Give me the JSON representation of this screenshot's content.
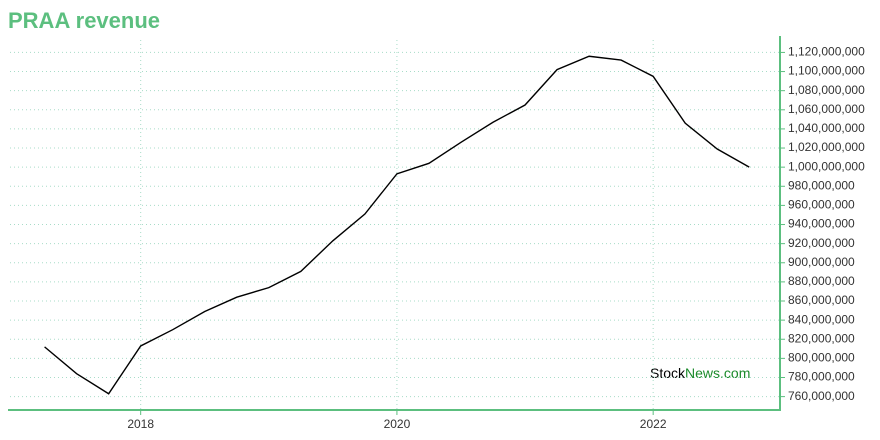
{
  "chart_data": {
    "type": "line",
    "title": "PRAA revenue",
    "x": [
      2017.25,
      2017.5,
      2017.75,
      2018,
      2018.25,
      2018.5,
      2018.75,
      2019,
      2019.25,
      2019.5,
      2019.75,
      2020,
      2020.25,
      2020.5,
      2020.75,
      2021,
      2021.25,
      2021.5,
      2021.75,
      2022,
      2022.25,
      2022.5,
      2022.75
    ],
    "values": [
      812000000,
      784000000,
      763000000,
      813000000,
      830000000,
      849000000,
      864000000,
      874000000,
      891000000,
      923000000,
      951000000,
      993000000,
      1004000000,
      1026000000,
      1047000000,
      1065000000,
      1102000000,
      1116000000,
      1112000000,
      1095000000,
      1046000000,
      1019000000,
      1000000000
    ],
    "color": "#000000",
    "xlim": [
      2016.98,
      2022.99
    ],
    "xticks": [
      2018,
      2020,
      2022
    ],
    "ylim": [
      746000000,
      1133000000
    ],
    "yticks": [
      {
        "value": 760000000,
        "label": "760,000,000"
      },
      {
        "value": 780000000,
        "label": "780,000,000"
      },
      {
        "value": 800000000,
        "label": "800,000,000"
      },
      {
        "value": 820000000,
        "label": "820,000,000"
      },
      {
        "value": 840000000,
        "label": "840,000,000"
      },
      {
        "value": 860000000,
        "label": "860,000,000"
      },
      {
        "value": 880000000,
        "label": "880,000,000"
      },
      {
        "value": 900000000,
        "label": "900,000,000"
      },
      {
        "value": 920000000,
        "label": "920,000,000"
      },
      {
        "value": 940000000,
        "label": "940,000,000"
      },
      {
        "value": 960000000,
        "label": "960,000,000"
      },
      {
        "value": 980000000,
        "label": "980,000,000"
      },
      {
        "value": 1000000000,
        "label": "1,000,000,000"
      },
      {
        "value": 1020000000,
        "label": "1,020,000,000"
      },
      {
        "value": 1040000000,
        "label": "1,040,000,000"
      },
      {
        "value": 1060000000,
        "label": "1,060,000,000"
      },
      {
        "value": 1080000000,
        "label": "1,080,000,000"
      },
      {
        "value": 1100000000,
        "label": "1,100,000,000"
      },
      {
        "value": 1120000000,
        "label": "1,120,000,000"
      }
    ],
    "grid": true,
    "watermark": [
      "Stock",
      "News.com"
    ]
  }
}
